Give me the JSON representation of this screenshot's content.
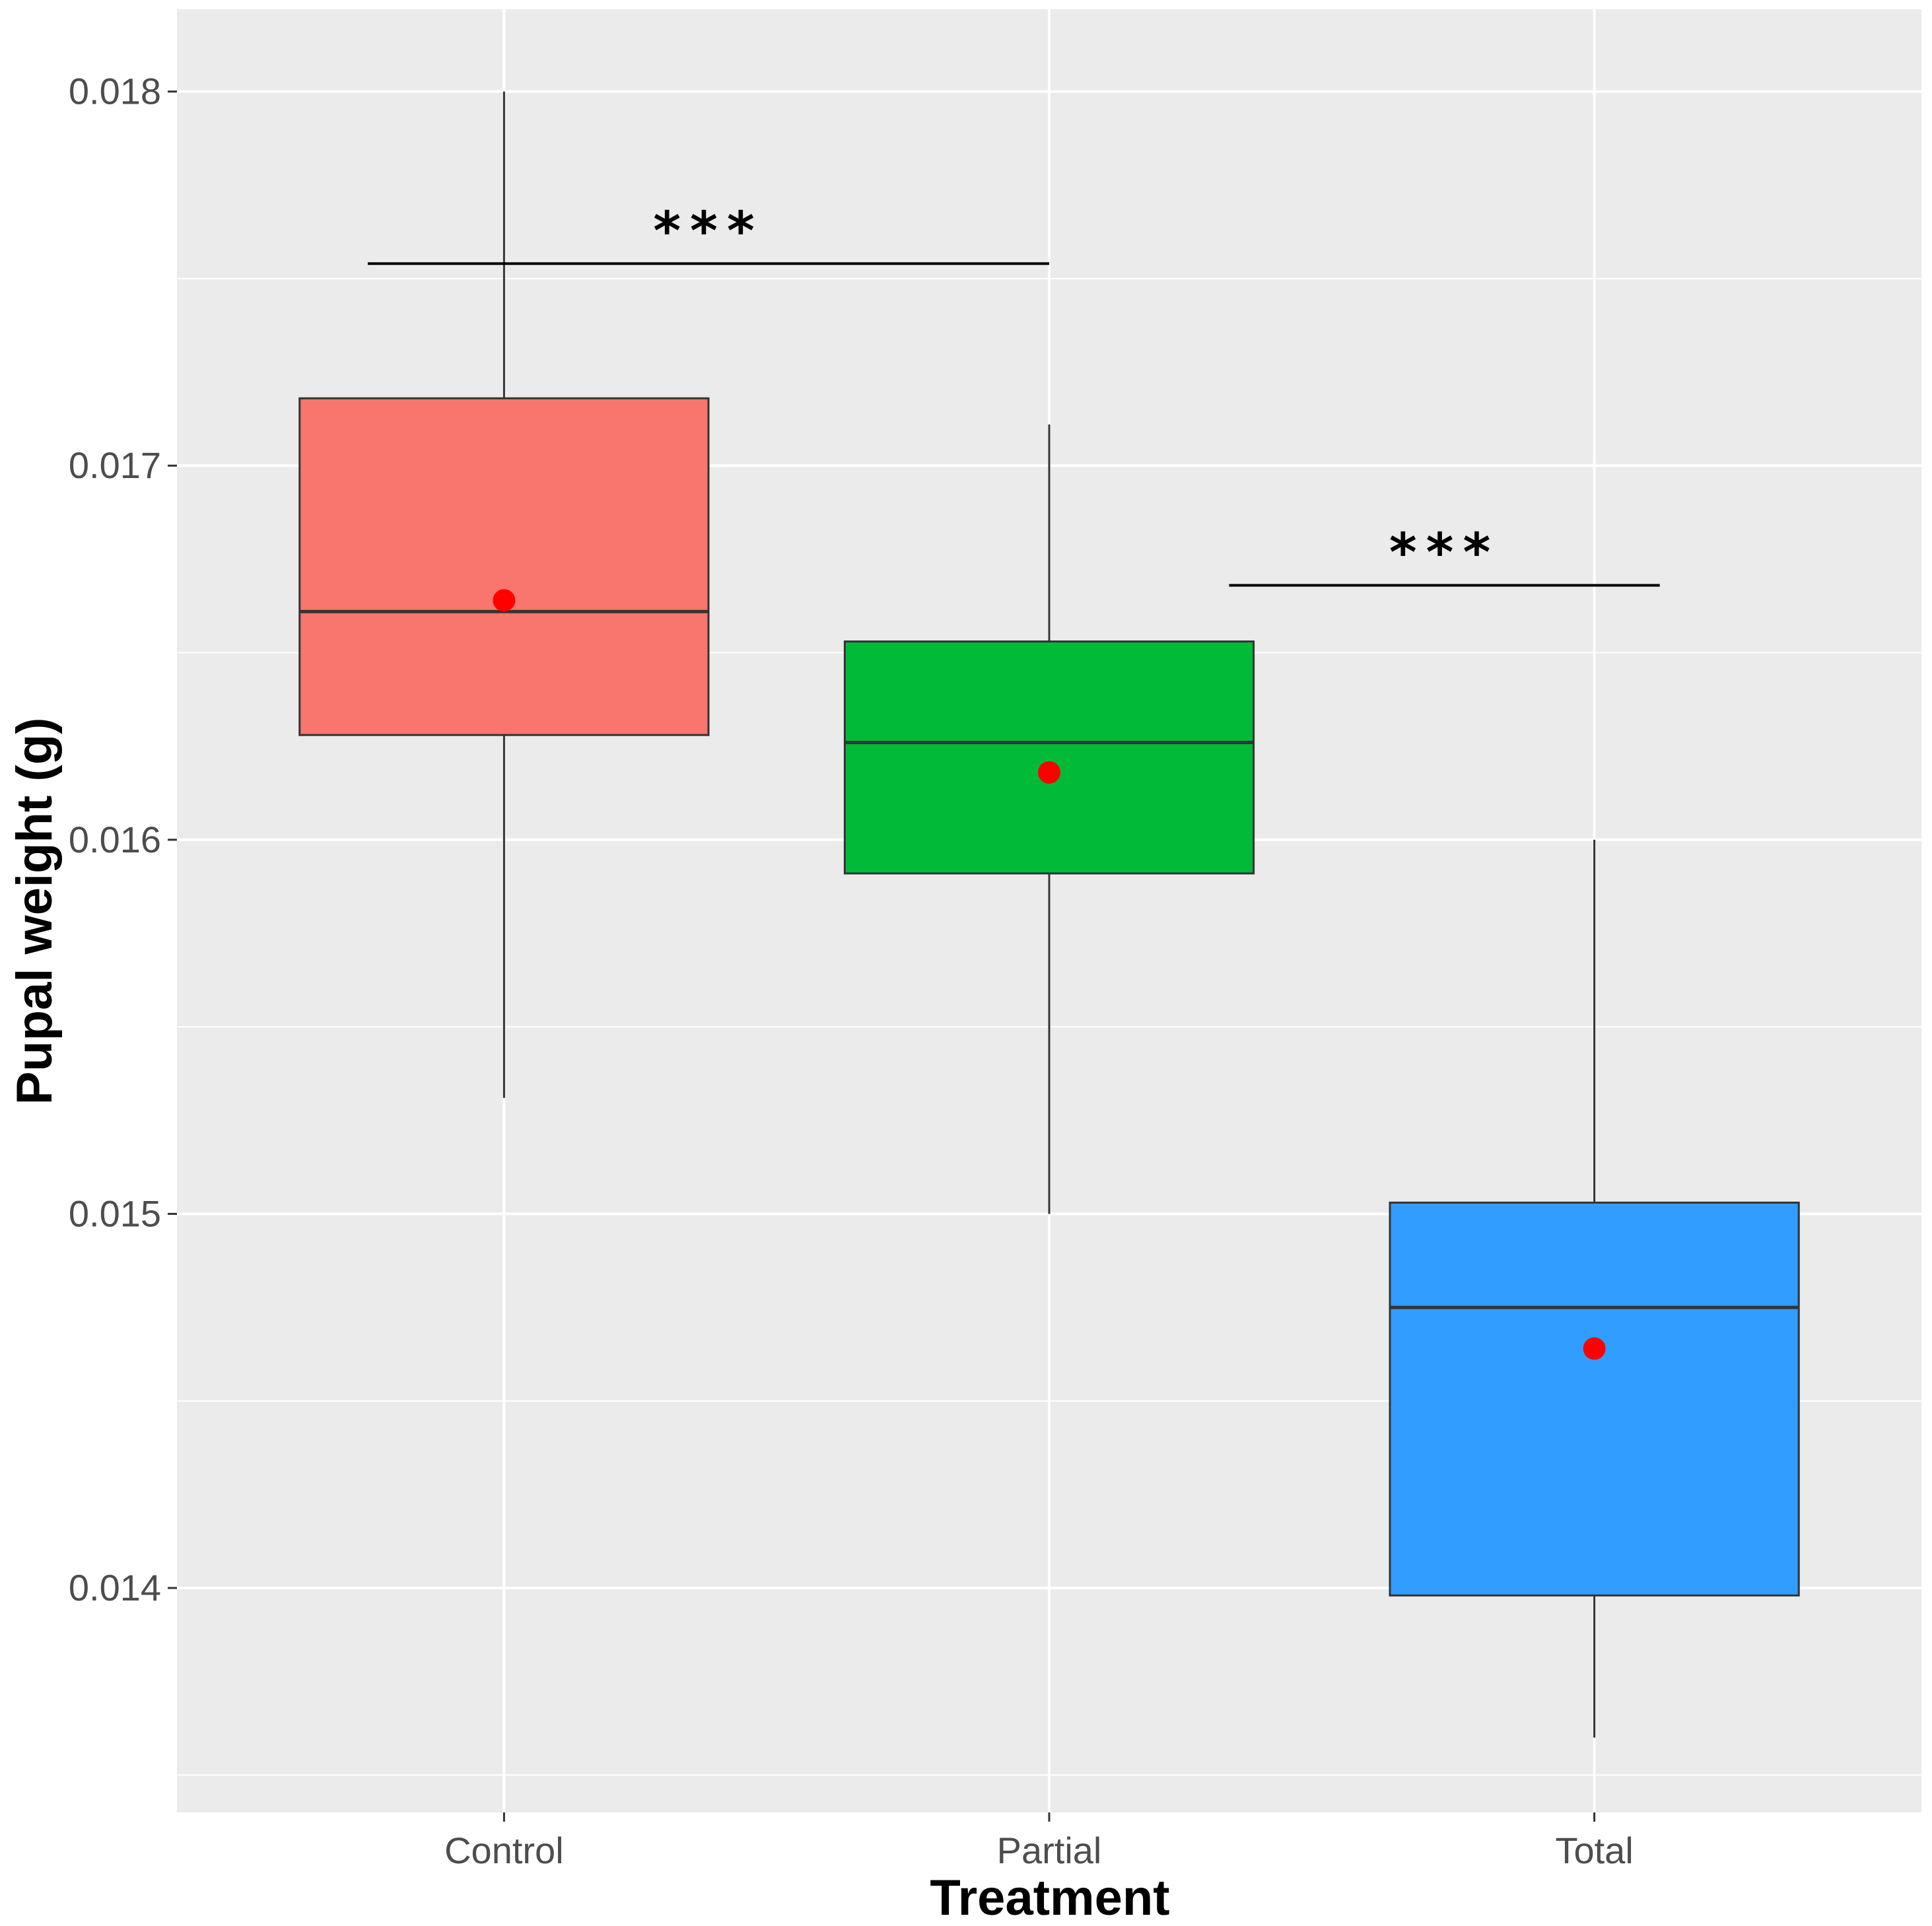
{
  "chart_data": {
    "type": "box",
    "xlabel": "Treatment",
    "ylabel": "Pupal weight (g)",
    "categories": [
      "Control",
      "Partial",
      "Total"
    ],
    "ylim": [
      0.0134,
      0.01822
    ],
    "y_ticks": [
      0.014,
      0.015,
      0.016,
      0.017,
      0.018
    ],
    "y_tick_labels": [
      "0.014",
      "0.015",
      "0.016",
      "0.017",
      "0.018"
    ],
    "y_minor_ticks": [
      0.0135,
      0.0145,
      0.0155,
      0.0165,
      0.0175
    ],
    "grid": true,
    "background": "#ebebeb",
    "gridline_color": "#ffffff",
    "boxes": [
      {
        "category": "Control",
        "whisker_low": 0.01531,
        "q1": 0.01628,
        "median": 0.01661,
        "q3": 0.01718,
        "whisker_high": 0.018,
        "mean": 0.01664,
        "fill": "#f8766d"
      },
      {
        "category": "Partial",
        "whisker_low": 0.015,
        "q1": 0.01591,
        "median": 0.01626,
        "q3": 0.01653,
        "whisker_high": 0.01711,
        "mean": 0.01618,
        "fill": "#00ba38"
      },
      {
        "category": "Total",
        "whisker_low": 0.0136,
        "q1": 0.01398,
        "median": 0.01475,
        "q3": 0.01503,
        "whisker_high": 0.016,
        "mean": 0.01464,
        "fill": "#319dff"
      }
    ],
    "mean_marker_color": "#ff0000",
    "significance": [
      {
        "from_x": 0.75,
        "to_x": 2.0,
        "y": 0.01754,
        "label": "***"
      },
      {
        "from_x": 2.33,
        "to_x": 3.12,
        "y": 0.01668,
        "label": "***"
      }
    ]
  }
}
